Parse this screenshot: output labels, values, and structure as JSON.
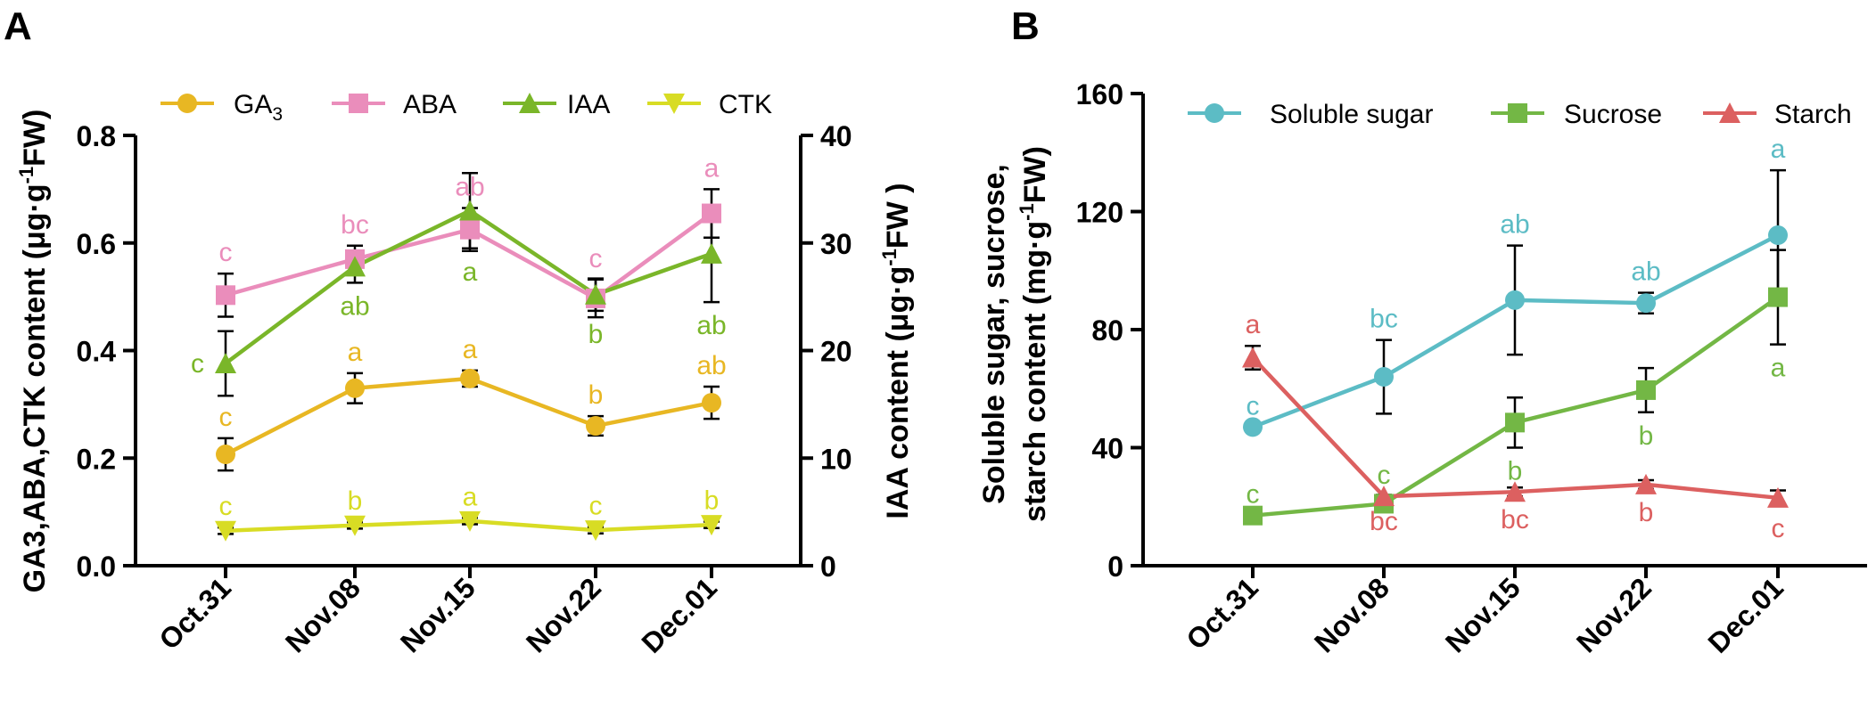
{
  "colors": {
    "ga3": "#E8B723",
    "aba": "#EA8DBB",
    "iaa": "#7AB629",
    "ctk": "#D8DC24",
    "soluble": "#5CBCC5",
    "sucrose": "#73B745",
    "starch": "#DC6060",
    "axis": "#000000"
  },
  "chart_data": [
    {
      "panel": "A",
      "type": "line",
      "categories": [
        "Oct.31",
        "Nov.08",
        "Nov.15",
        "Nov.22",
        "Dec.01"
      ],
      "ylabel_left": "GA3,ABA,CTK content (μg·g",
      "ylabel_left_sup": "-1",
      "ylabel_left_end": "FW)",
      "ylabel_right": "IAA content (μg·g",
      "ylabel_right_sup": "-1",
      "ylabel_right_end": "FW )",
      "ylim_left": [
        0,
        0.8
      ],
      "yticks_left": [
        "0.0",
        "0.2",
        "0.4",
        "0.6",
        "0.8"
      ],
      "ylim_right": [
        0,
        40
      ],
      "yticks_right": [
        "0",
        "10",
        "20",
        "30",
        "40"
      ],
      "series": [
        {
          "key": "ga3",
          "name": "GA",
          "name_sub": "3",
          "axis": "left",
          "marker": "circle",
          "values": [
            0.207,
            0.33,
            0.348,
            0.26,
            0.303
          ],
          "errors": [
            0.03,
            0.028,
            0.015,
            0.018,
            0.03
          ],
          "letters": [
            "c",
            "a",
            "a",
            "b",
            "ab"
          ],
          "letter_pos": [
            "above",
            "above",
            "above",
            "above",
            "above"
          ]
        },
        {
          "key": "aba",
          "name": "ABA",
          "axis": "left",
          "marker": "square",
          "values": [
            0.503,
            0.57,
            0.625,
            0.497,
            0.655
          ],
          "errors": [
            0.04,
            0.025,
            0.04,
            0.035,
            0.045
          ],
          "letters": [
            "c",
            "bc",
            "ab",
            "c",
            "a"
          ],
          "letter_pos": [
            "above",
            "above",
            "above",
            "above",
            "above"
          ]
        },
        {
          "key": "iaa",
          "name": "IAA",
          "axis": "right",
          "marker": "triangle-up",
          "values": [
            18.8,
            27.8,
            33.0,
            25.2,
            29.0
          ],
          "errors": [
            3.0,
            1.5,
            3.5,
            1.5,
            4.5
          ],
          "letters": [
            "c",
            "ab",
            "a",
            "b",
            "ab"
          ],
          "letter_pos": [
            "left",
            "below",
            "below",
            "below",
            "below"
          ]
        },
        {
          "key": "ctk",
          "name": "CTK",
          "axis": "left",
          "marker": "triangle-down",
          "values": [
            0.065,
            0.075,
            0.083,
            0.066,
            0.076
          ],
          "errors": [
            0.006,
            0.006,
            0.006,
            0.006,
            0.006
          ],
          "letters": [
            "c",
            "b",
            "a",
            "c",
            "b"
          ],
          "letter_pos": [
            "above",
            "above",
            "above",
            "above",
            "above"
          ]
        }
      ]
    },
    {
      "panel": "B",
      "type": "line",
      "categories": [
        "Oct.31",
        "Nov.08",
        "Nov.15",
        "Nov.22",
        "Dec.01"
      ],
      "ylabel_line1": "Soluble sugar, sucrose,",
      "ylabel_line2": "starch content (mg·g",
      "ylabel_line2_sup": "-1",
      "ylabel_line2_end": "FW)",
      "ylim": [
        0,
        160
      ],
      "yticks": [
        "0",
        "40",
        "80",
        "120",
        "160"
      ],
      "series": [
        {
          "key": "soluble",
          "name": "Soluble sugar",
          "marker": "circle",
          "values": [
            47,
            64,
            90,
            89,
            112
          ],
          "errors": [
            0,
            12.5,
            18.5,
            3.5,
            22
          ],
          "letters": [
            "c",
            "bc",
            "ab",
            "ab",
            "a"
          ],
          "letter_pos": [
            "above",
            "above",
            "above",
            "above",
            "above"
          ]
        },
        {
          "key": "sucrose",
          "name": "Sucrose",
          "marker": "square",
          "values": [
            17,
            21,
            48.5,
            59.5,
            91
          ],
          "errors": [
            0,
            2.5,
            8.5,
            7.5,
            16
          ],
          "letters": [
            "c",
            "c",
            "b",
            "b",
            "a"
          ],
          "letter_pos": [
            "above",
            "above",
            "below",
            "below",
            "below"
          ]
        },
        {
          "key": "starch",
          "name": "Starch",
          "marker": "triangle-up",
          "values": [
            70.5,
            23.5,
            25,
            27.5,
            23
          ],
          "errors": [
            4,
            0.5,
            1.5,
            1.5,
            2.5
          ],
          "letters": [
            "a",
            "bc",
            "bc",
            "b",
            "c"
          ],
          "letter_pos": [
            "above",
            "below",
            "below",
            "below",
            "below"
          ]
        }
      ]
    }
  ]
}
